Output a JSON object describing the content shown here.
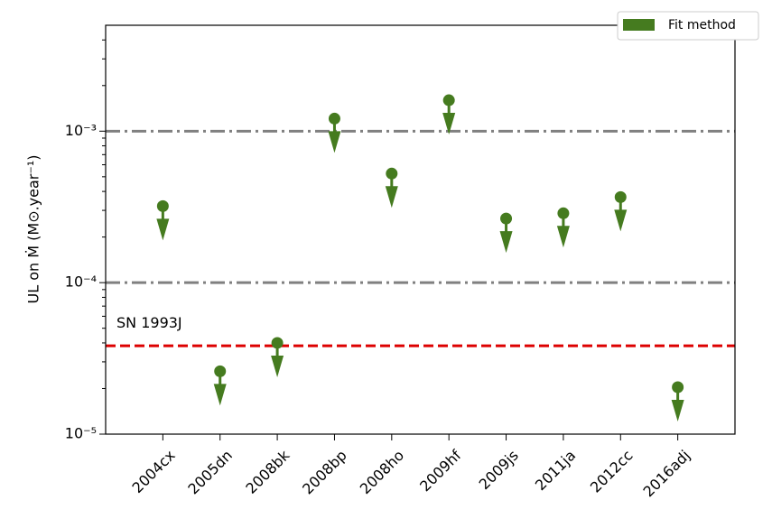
{
  "chart_data": {
    "type": "upper-limit",
    "y_label": "UL on Ṁ (M⊙.year⁻¹)",
    "categories": [
      "2004cx",
      "2005dn",
      "2008bk",
      "2008bp",
      "2008ho",
      "2009hf",
      "2009js",
      "2011ja",
      "2012cc",
      "2016adj"
    ],
    "series": [
      {
        "name": "Fit method",
        "color": "#457b1f",
        "values": [
          0.00032,
          2.6e-05,
          4e-05,
          0.00121,
          0.000525,
          0.0016,
          0.000265,
          0.000287,
          0.000367,
          2.04e-05
        ]
      }
    ],
    "ylim": [
      1e-05,
      0.005
    ],
    "yticks": [
      {
        "value": 1e-05,
        "label": "10⁻⁵"
      },
      {
        "value": 0.0001,
        "label": "10⁻⁴"
      },
      {
        "value": 0.001,
        "label": "10⁻³"
      }
    ],
    "log_y": true,
    "hlines": [
      {
        "value": 0.001,
        "color": "#808080"
      },
      {
        "value": 0.0001,
        "color": "#808080"
      }
    ],
    "reference": {
      "label": "SN 1993J",
      "value": 3.83e-05,
      "color": "#dd0000"
    },
    "legend": "upper right"
  }
}
